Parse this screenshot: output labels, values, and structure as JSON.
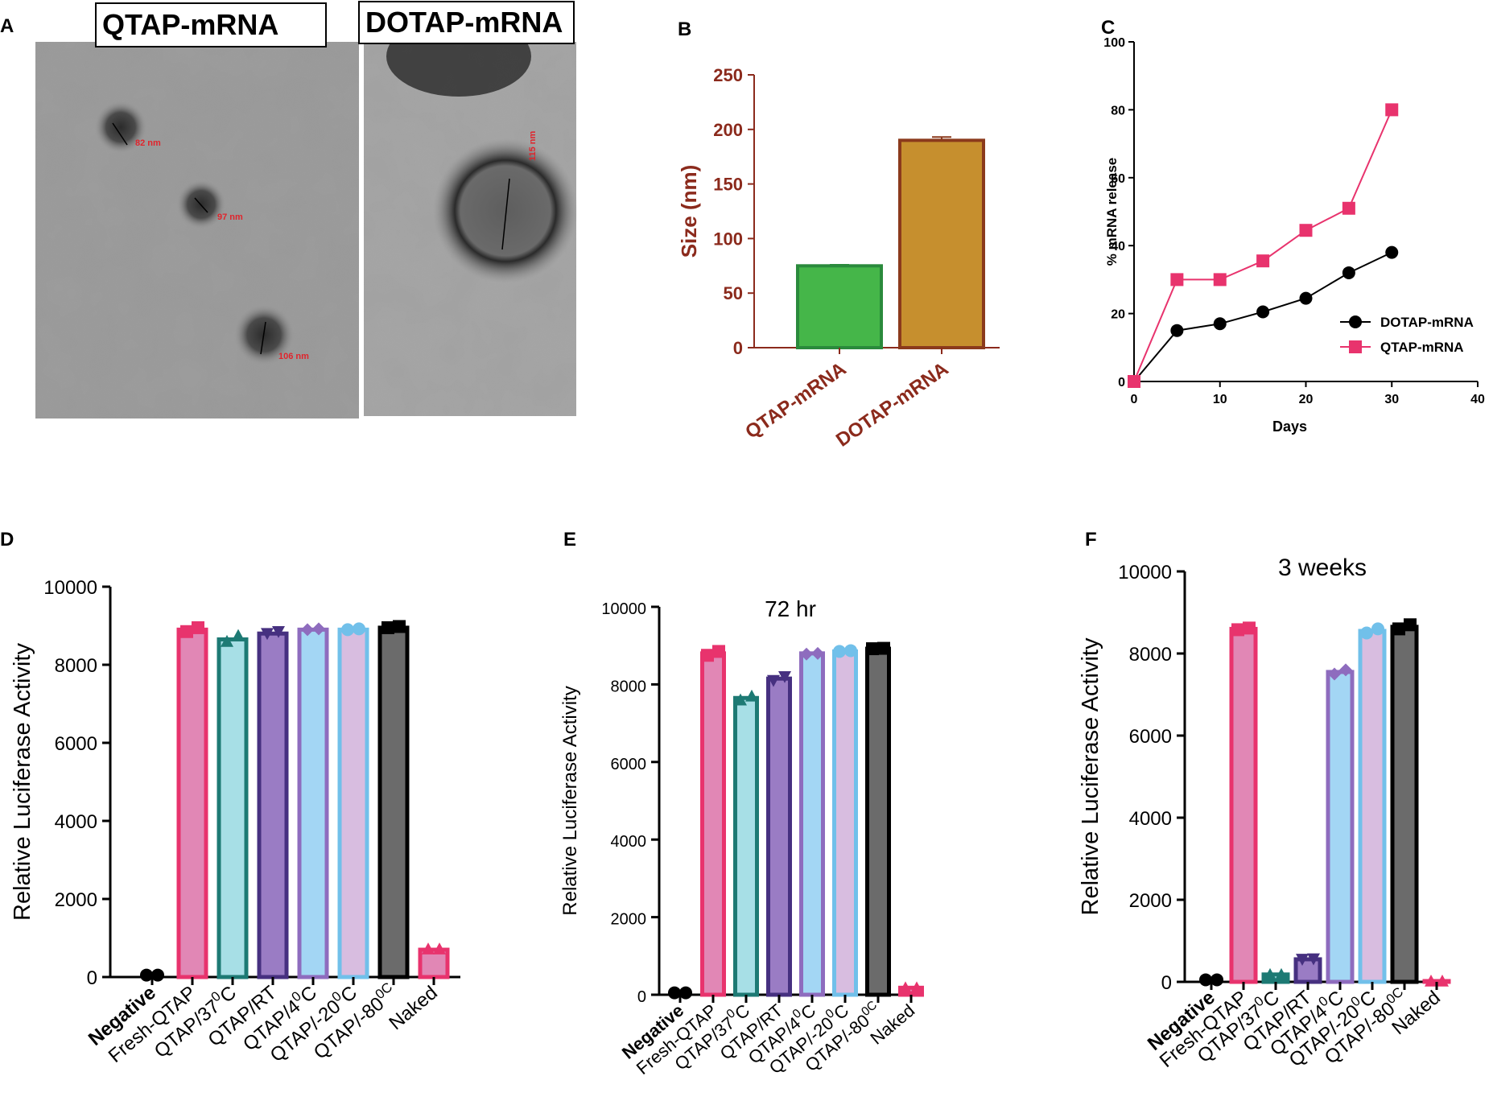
{
  "panel_letters": {
    "a": "A",
    "b": "B",
    "c": "C",
    "d": "D",
    "e": "E",
    "f": "F"
  },
  "tem": {
    "left_label": "QTAP-mRNA",
    "right_label": "DOTAP-mRNA",
    "scale_labels": [
      "82 nm",
      "97 nm",
      "106 nm",
      "115 nm"
    ]
  },
  "colors": {
    "axis_b": "#8b2a1c",
    "qtap_line": "#e8336d",
    "dotap_line": "#000000"
  },
  "chart_data": [
    {
      "id": "B",
      "type": "bar",
      "categories": [
        "QTAP-mRNA",
        "DOTAP-mRNA"
      ],
      "values": [
        75,
        190
      ],
      "errors": [
        1,
        3
      ],
      "colors": [
        "#45b649",
        "#c68f2e"
      ],
      "edge_colors": [
        "#2a8a3c",
        "#8b3a1c"
      ],
      "ylabel": "Size (nm)",
      "ylim": [
        0,
        250
      ],
      "yticks": [
        0,
        50,
        100,
        150,
        200,
        250
      ]
    },
    {
      "id": "C",
      "type": "line",
      "xlabel": "Days",
      "ylabel": "% mRNA release",
      "xlim": [
        0,
        40
      ],
      "ylim": [
        0,
        100
      ],
      "xticks": [
        0,
        10,
        20,
        30,
        40
      ],
      "yticks": [
        0,
        20,
        40,
        60,
        80,
        100
      ],
      "legend": "right",
      "series": [
        {
          "name": "DOTAP-mRNA",
          "color": "#000000",
          "marker": "circle",
          "x": [
            0,
            5,
            10,
            15,
            20,
            25,
            30
          ],
          "y": [
            0,
            15,
            17,
            20.5,
            24.5,
            32,
            38
          ]
        },
        {
          "name": "QTAP-mRNA",
          "color": "#e8336d",
          "marker": "square",
          "x": [
            0,
            5,
            10,
            15,
            20,
            25,
            30
          ],
          "y": [
            0,
            30,
            30,
            35.5,
            44.5,
            51,
            80
          ]
        }
      ]
    },
    {
      "id": "D",
      "type": "bar",
      "title": "",
      "ylabel": "Relative Luciferase Activity",
      "ylim": [
        0,
        10000
      ],
      "yticks": [
        0,
        2000,
        4000,
        6000,
        8000,
        10000
      ],
      "categories": [
        {
          "base": "Negative",
          "bold": true
        },
        {
          "base": "Fresh-QTAP"
        },
        {
          "base": "QTAP/37",
          "sup": "0",
          "tail": "C"
        },
        {
          "base": "QTAP/RT"
        },
        {
          "base": "QTAP/4",
          "sup": "0",
          "tail": "C"
        },
        {
          "base": "QTAP/-20",
          "sup": "0",
          "tail": "C"
        },
        {
          "base": "QTAP/-80",
          "sup": "0C"
        },
        {
          "base": "Naked"
        }
      ],
      "values": [
        50,
        8900,
        8650,
        8800,
        8900,
        8900,
        8950,
        700
      ],
      "points": [
        [
          50,
          50
        ],
        [
          8850,
          8950
        ],
        [
          8600,
          8750
        ],
        [
          8800,
          8850
        ],
        [
          8900,
          8920
        ],
        [
          8900,
          8920
        ],
        [
          8950,
          8980
        ],
        [
          720,
          720
        ]
      ],
      "markers": [
        "circle",
        "square",
        "triangle-up",
        "triangle-down",
        "diamond",
        "circle",
        "square",
        "triangle-up"
      ],
      "fill_colors": [
        "#000000",
        "#e187b5",
        "#a7dfe6",
        "#9a7cc4",
        "#a3d6f4",
        "#d8bde0",
        "#6b6b6b",
        "#e187b5"
      ],
      "edge_colors": [
        "#000000",
        "#e8336d",
        "#1d7a74",
        "#463080",
        "#8e6cbe",
        "#71c0ea",
        "#000000",
        "#e8336d"
      ]
    },
    {
      "id": "E",
      "type": "bar",
      "title": "72 hr",
      "ylabel": "Relative Luciferase Activity",
      "ylim": [
        0,
        10000
      ],
      "yticks": [
        0,
        2000,
        4000,
        6000,
        8000,
        10000
      ],
      "categories": [
        {
          "base": "Negative",
          "bold": true
        },
        {
          "base": "Fresh-QTAP"
        },
        {
          "base": "QTAP/37",
          "sup": "0",
          "tail": "C"
        },
        {
          "base": "QTAP/RT"
        },
        {
          "base": "QTAP/4",
          "sup": "0",
          "tail": "C"
        },
        {
          "base": "QTAP/-20",
          "sup": "0",
          "tail": "C"
        },
        {
          "base": "QTAP/-80",
          "sup": "0C"
        },
        {
          "base": "Naked"
        }
      ],
      "values": [
        50,
        8800,
        7650,
        8150,
        8800,
        8850,
        8920,
        180
      ],
      "points": [
        [
          50,
          50
        ],
        [
          8750,
          8850
        ],
        [
          7600,
          7700
        ],
        [
          8100,
          8200
        ],
        [
          8780,
          8800
        ],
        [
          8850,
          8870
        ],
        [
          8920,
          8930
        ],
        [
          180,
          180
        ]
      ],
      "markers": [
        "circle",
        "square",
        "triangle-up",
        "triangle-down",
        "diamond",
        "circle",
        "square",
        "triangle-up"
      ],
      "fill_colors": [
        "#000000",
        "#e187b5",
        "#a7dfe6",
        "#9a7cc4",
        "#a3d6f4",
        "#d8bde0",
        "#6b6b6b",
        "#e187b5"
      ],
      "edge_colors": [
        "#000000",
        "#e8336d",
        "#1d7a74",
        "#463080",
        "#8e6cbe",
        "#71c0ea",
        "#000000",
        "#e8336d"
      ]
    },
    {
      "id": "F",
      "type": "bar",
      "title": "3 weeks",
      "ylabel": "Relative Luciferase Activity",
      "ylim": [
        0,
        10000
      ],
      "yticks": [
        0,
        2000,
        4000,
        6000,
        8000,
        10000
      ],
      "categories": [
        {
          "base": "Negative",
          "bold": true
        },
        {
          "base": "Fresh-QTAP"
        },
        {
          "base": "QTAP/37",
          "sup": "0",
          "tail": "C"
        },
        {
          "base": "QTAP/RT"
        },
        {
          "base": "QTAP/4",
          "sup": "0",
          "tail": "C"
        },
        {
          "base": "QTAP/-20",
          "sup": "0",
          "tail": "C"
        },
        {
          "base": "QTAP/-80",
          "sup": "0C"
        },
        {
          "base": "Naked"
        }
      ],
      "values": [
        50,
        8600,
        180,
        550,
        7550,
        8550,
        8650,
        20
      ],
      "points": [
        [
          50,
          50
        ],
        [
          8580,
          8620
        ],
        [
          180,
          180
        ],
        [
          550,
          560
        ],
        [
          7500,
          7600
        ],
        [
          8500,
          8600
        ],
        [
          8600,
          8700
        ],
        [
          20,
          20
        ]
      ],
      "markers": [
        "circle",
        "square",
        "triangle-up",
        "triangle-down",
        "diamond",
        "circle",
        "square",
        "triangle-up"
      ],
      "fill_colors": [
        "#000000",
        "#e187b5",
        "#a7dfe6",
        "#9a7cc4",
        "#a3d6f4",
        "#d8bde0",
        "#6b6b6b",
        "#e187b5"
      ],
      "edge_colors": [
        "#000000",
        "#e8336d",
        "#1d7a74",
        "#463080",
        "#8e6cbe",
        "#71c0ea",
        "#000000",
        "#e8336d"
      ]
    }
  ]
}
